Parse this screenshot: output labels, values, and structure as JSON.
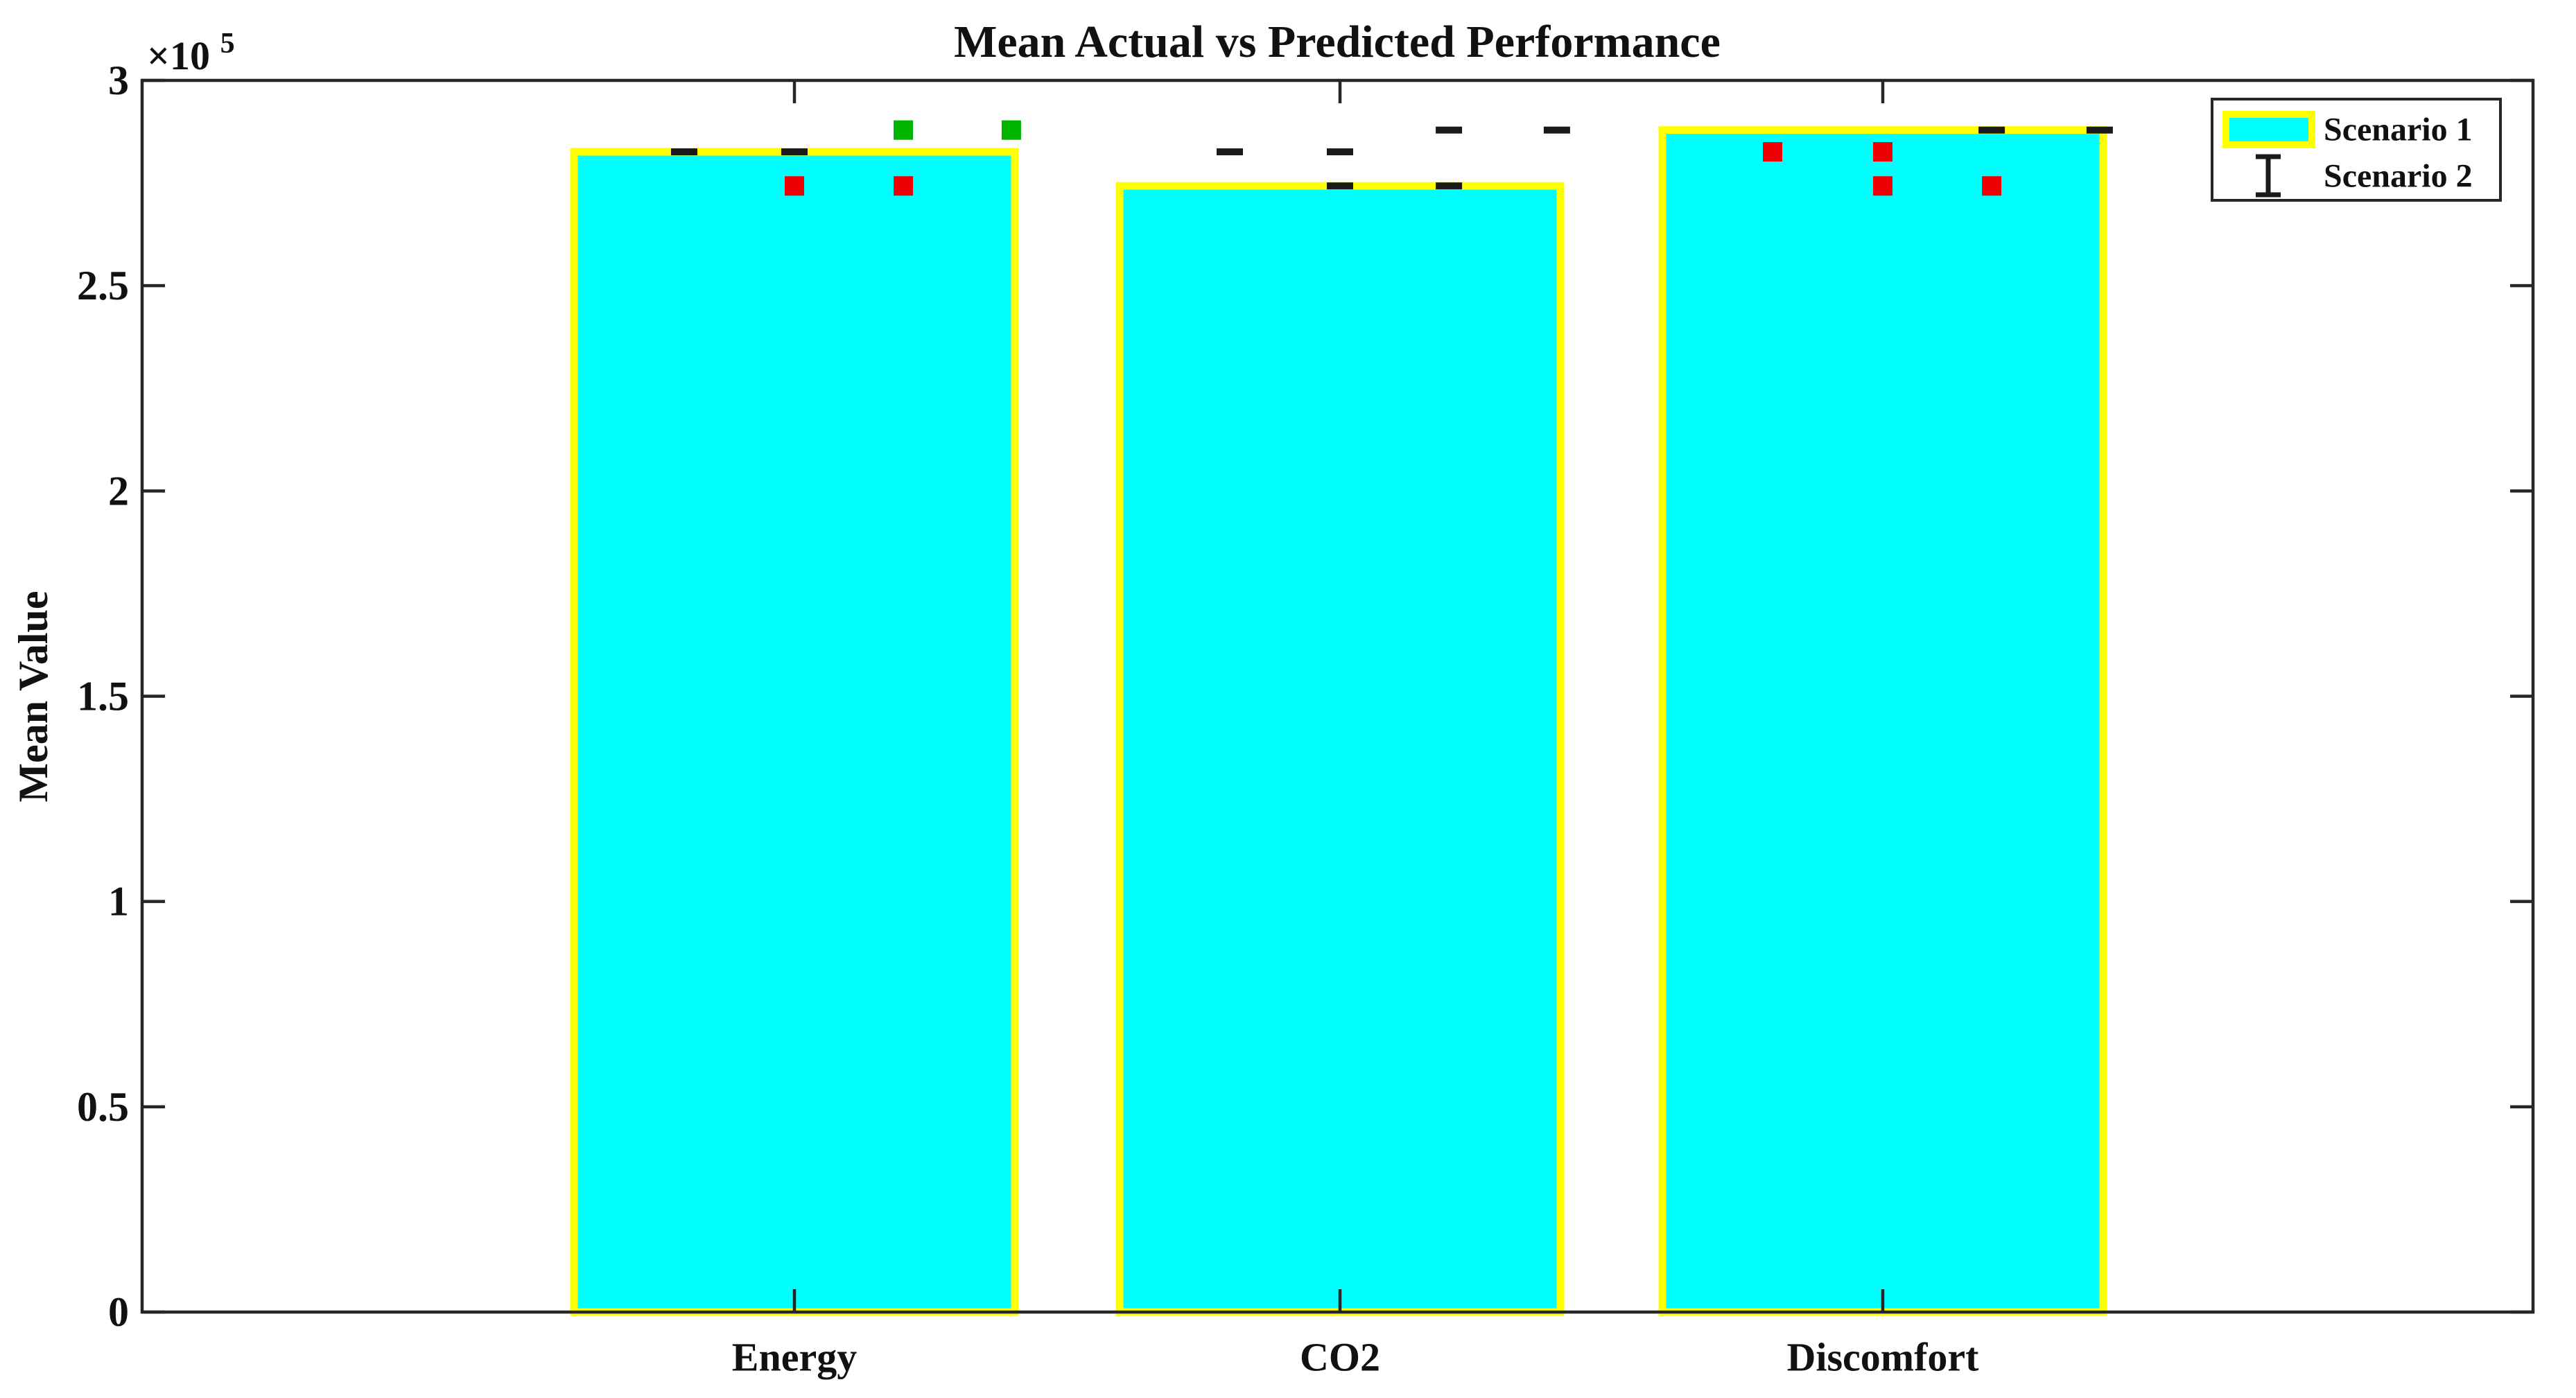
{
  "title": "Mean Actual vs Predicted Performance",
  "axes": {
    "ylabel": "Mean Value",
    "y_exponent_base": "×10",
    "y_exponent_power": "5",
    "y_ticks": [
      0,
      0.5,
      1,
      1.5,
      2,
      2.5,
      3
    ],
    "y_tick_labels": [
      "0",
      "0.5",
      "1",
      "1.5",
      "2",
      "2.5",
      "3"
    ],
    "x_tick_labels": [
      "Energy",
      "CO2",
      "Discomfort"
    ]
  },
  "legend": {
    "items": [
      {
        "label": "Scenario 1",
        "swatch": "bar-patch",
        "fill": "#00ffff",
        "edge": "#ffff00"
      },
      {
        "label": "Scenario 2",
        "swatch": "errorbar-symbol",
        "color": "#1a1a1a"
      }
    ]
  },
  "colors": {
    "bar_fill": "#00ffff",
    "bar_edge": "#ffff00",
    "axis": "#262626",
    "marker_black": "#1a1a1a",
    "marker_red": "#ee0000",
    "marker_green": "#00b400"
  },
  "chart_data": {
    "type": "bar",
    "title": "Mean Actual vs Predicted Performance",
    "xlabel": "",
    "ylabel": "Mean Value",
    "ylim": [
      0,
      300000
    ],
    "y_tick_values": [
      0,
      50000,
      100000,
      150000,
      200000,
      250000,
      300000
    ],
    "grid": false,
    "legend_position": "top-right",
    "categories": [
      "Energy",
      "CO2",
      "Discomfort"
    ],
    "bar_series": {
      "name": "Scenario 1",
      "values": [
        282600,
        274300,
        287900
      ],
      "fill": "#00ffff",
      "edge": "#ffff00"
    },
    "overlay_markers": [
      {
        "category": "Energy",
        "offset": -0.25,
        "value": 282600,
        "marker": "dash",
        "color": "#1a1a1a"
      },
      {
        "category": "Energy",
        "offset": 0.0,
        "value": 282600,
        "marker": "dash",
        "color": "#1a1a1a"
      },
      {
        "category": "Energy",
        "offset": 0.0,
        "value": 274300,
        "marker": "square",
        "color": "#ee0000"
      },
      {
        "category": "Energy",
        "offset": 0.247,
        "value": 287900,
        "marker": "square",
        "color": "#00b400"
      },
      {
        "category": "Energy",
        "offset": 0.247,
        "value": 274300,
        "marker": "square",
        "color": "#ee0000"
      },
      {
        "category": "Energy",
        "offset": 0.492,
        "value": 287900,
        "marker": "square",
        "color": "#00b400"
      },
      {
        "category": "CO2",
        "offset": -0.25,
        "value": 282600,
        "marker": "dash",
        "color": "#1a1a1a"
      },
      {
        "category": "CO2",
        "offset": 0.0,
        "value": 282600,
        "marker": "dash",
        "color": "#1a1a1a"
      },
      {
        "category": "CO2",
        "offset": 0.0,
        "value": 274300,
        "marker": "dash",
        "color": "#1a1a1a"
      },
      {
        "category": "CO2",
        "offset": 0.247,
        "value": 287900,
        "marker": "dash",
        "color": "#1a1a1a"
      },
      {
        "category": "CO2",
        "offset": 0.247,
        "value": 274300,
        "marker": "dash",
        "color": "#1a1a1a"
      },
      {
        "category": "CO2",
        "offset": 0.492,
        "value": 287900,
        "marker": "dash",
        "color": "#1a1a1a"
      },
      {
        "category": "Discomfort",
        "offset": -0.25,
        "value": 282600,
        "marker": "square",
        "color": "#ee0000"
      },
      {
        "category": "Discomfort",
        "offset": 0.0,
        "value": 282600,
        "marker": "square",
        "color": "#ee0000"
      },
      {
        "category": "Discomfort",
        "offset": 0.0,
        "value": 274300,
        "marker": "square",
        "color": "#ee0000"
      },
      {
        "category": "Discomfort",
        "offset": 0.247,
        "value": 287900,
        "marker": "dash",
        "color": "#1a1a1a"
      },
      {
        "category": "Discomfort",
        "offset": 0.247,
        "value": 274300,
        "marker": "square",
        "color": "#ee0000"
      },
      {
        "category": "Discomfort",
        "offset": 0.492,
        "value": 287900,
        "marker": "dash",
        "color": "#1a1a1a"
      }
    ]
  }
}
